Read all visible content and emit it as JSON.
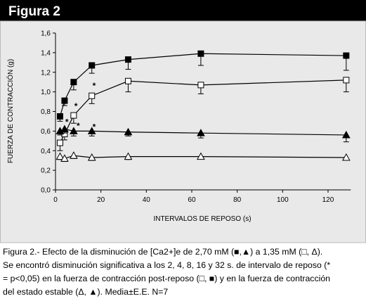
{
  "header": {
    "title": "Figura 2"
  },
  "chart_data": {
    "type": "line",
    "y_label": "FUERZA DE CONTRACCIÓN (g)",
    "x_label": "INTERVALOS DE REPOSO (s)",
    "x": [
      2,
      4,
      8,
      16,
      32,
      64,
      128
    ],
    "xlim": [
      0,
      130
    ],
    "xticks": [
      0,
      20,
      40,
      60,
      80,
      100,
      120
    ],
    "ylim": [
      0,
      1.6
    ],
    "yticks": [
      {
        "value": 0,
        "label": "0,0"
      },
      {
        "value": 0.2,
        "label": "0,2"
      },
      {
        "value": 0.4,
        "label": "0,4"
      },
      {
        "value": 0.6,
        "label": "0,6"
      },
      {
        "value": 0.8,
        "label": "0,8"
      },
      {
        "value": 1.0,
        "label": "1,0"
      },
      {
        "value": 1.2,
        "label": "1,2"
      },
      {
        "value": 1.4,
        "label": "1,4"
      },
      {
        "value": 1.6,
        "label": "1,6"
      }
    ],
    "series": [
      {
        "color": "#000000",
        "marker": "square",
        "filled": true,
        "values": [
          0.75,
          0.91,
          1.1,
          1.27,
          1.33,
          1.39,
          1.37
        ],
        "errors": [
          0.05,
          0.05,
          0.08,
          0.08,
          0.1,
          0.12,
          0.15
        ]
      },
      {
        "color": "#000000",
        "marker": "square",
        "filled": false,
        "values": [
          0.48,
          0.57,
          0.76,
          0.96,
          1.11,
          1.07,
          1.12
        ],
        "errors": [
          0.08,
          0.06,
          0.08,
          0.08,
          0.11,
          0.09,
          0.12
        ]
      },
      {
        "color": "#000000",
        "marker": "triangle",
        "filled": true,
        "values": [
          0.6,
          0.62,
          0.6,
          0.6,
          0.59,
          0.58,
          0.56
        ],
        "errors": [
          0.04,
          0.04,
          0.05,
          0.05,
          0.04,
          0.05,
          0.07
        ]
      },
      {
        "color": "#000000",
        "marker": "triangle",
        "filled": false,
        "values": [
          0.34,
          0.32,
          0.35,
          0.33,
          0.34,
          0.34,
          0.33
        ],
        "errors": [
          0.03,
          0.03,
          0.03,
          0.03,
          0.03,
          0.02,
          0.02
        ]
      }
    ],
    "annotations": [
      {
        "text": "*",
        "x": 5,
        "y": 0.7
      },
      {
        "text": "*",
        "x": 9,
        "y": 0.86
      },
      {
        "text": "*",
        "x": 17,
        "y": 1.07
      },
      {
        "text": "*",
        "x": 10,
        "y": 0.66
      },
      {
        "text": "*",
        "x": 17,
        "y": 0.65
      }
    ]
  },
  "caption": {
    "lines": [
      "Figura 2.- Efecto de la disminución de [Ca2+]e de 2,70 mM (■,▲) a 1,35 mM (□, Δ).",
      "Se encontró disminución significativa a los 2, 4, 8, 16 y 32 s. de intervalo de reposo  (*",
      "= p<0,05) en la fuerza de contracción post-reposo (□, ■) y en la fuerza de contracción",
      "del estado estable (Δ, ▲). Media±E.E. N=7"
    ]
  }
}
